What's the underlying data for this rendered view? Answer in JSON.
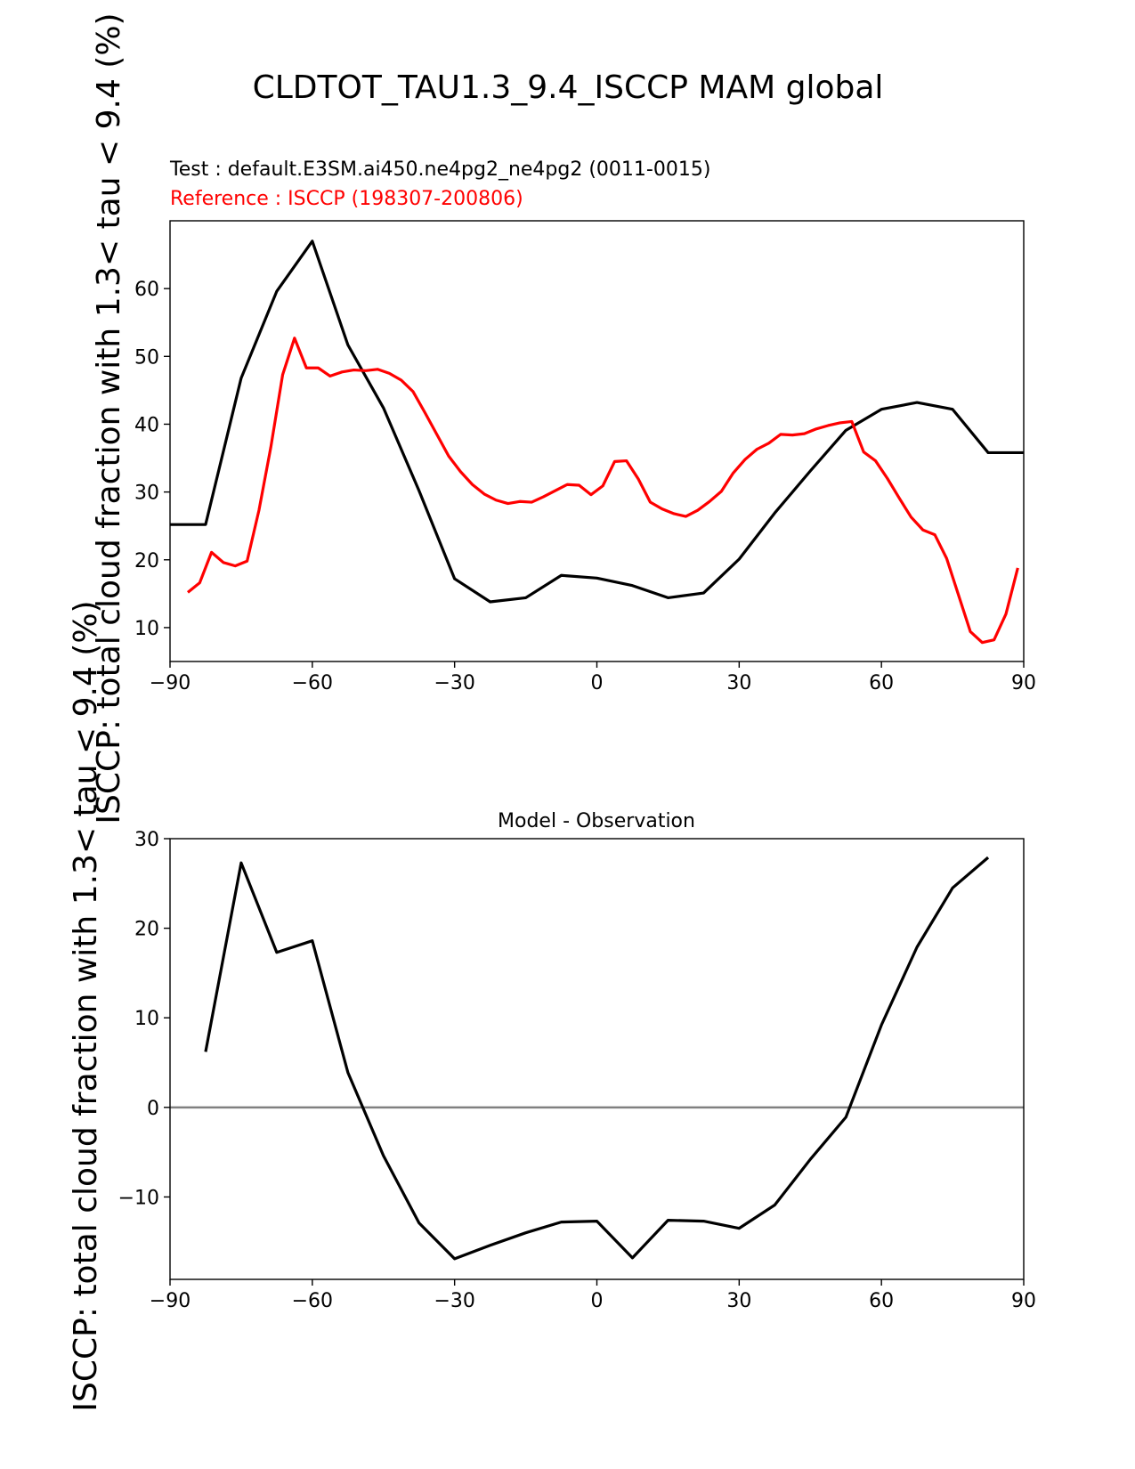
{
  "figure": {
    "title": "CLDTOT_TAU1.3_9.4_ISCCP MAM global",
    "test_label": "Test : default.E3SM.ai450.ne4pg2_ne4pg2 (0011-0015)",
    "reference_label": "Reference : ISCCP (198307-200806)",
    "test_color": "#000000",
    "reference_color": "#ff0000",
    "zero_line_color": "#808080"
  },
  "chart_data": [
    {
      "type": "line",
      "title": "",
      "ylabel": "ISCCP: total cloud fraction with 1.3< tau < 9.4 (%)",
      "xlabel": "",
      "xlim": [
        -90,
        90
      ],
      "ylim": [
        5,
        70
      ],
      "xticks": [
        -90,
        -60,
        -30,
        0,
        30,
        60,
        90
      ],
      "xtick_labels": [
        "−90",
        "−60",
        "−30",
        "0",
        "30",
        "60",
        "90"
      ],
      "yticks": [
        10,
        20,
        30,
        40,
        50,
        60
      ],
      "ytick_labels": [
        "10",
        "20",
        "30",
        "40",
        "50",
        "60"
      ],
      "grid": false,
      "series": [
        {
          "name": "",
          "color": "#000000",
          "x": [
            -90,
            -82.5,
            -75,
            -67.5,
            -60,
            -52.5,
            -45,
            -37.5,
            -30,
            -22.5,
            -15,
            -7.5,
            0,
            7.5,
            15,
            22.5,
            30,
            37.5,
            45,
            52.5,
            60,
            67.5,
            75,
            82.5,
            90
          ],
          "y": [
            25.2,
            25.2,
            46.8,
            59.6,
            67.0,
            51.7,
            42.4,
            30.2,
            17.2,
            13.8,
            14.4,
            17.7,
            17.3,
            16.2,
            14.4,
            15.1,
            20.1,
            26.9,
            33.1,
            39.1,
            42.2,
            43.2,
            42.2,
            35.8,
            35.8
          ]
        },
        {
          "name": "",
          "color": "#ff0000",
          "x": [
            -86.25,
            -83.75,
            -81.25,
            -78.75,
            -76.25,
            -73.75,
            -71.25,
            -68.75,
            -66.25,
            -63.75,
            -61.25,
            -58.75,
            -56.25,
            -53.75,
            -51.25,
            -48.75,
            -46.25,
            -43.75,
            -41.25,
            -38.75,
            -36.25,
            -33.75,
            -31.25,
            -28.75,
            -26.25,
            -23.75,
            -21.25,
            -18.75,
            -16.25,
            -13.75,
            -11.25,
            -8.75,
            -6.25,
            -3.75,
            -1.25,
            1.25,
            3.75,
            6.25,
            8.75,
            11.25,
            13.75,
            16.25,
            18.75,
            21.25,
            23.75,
            26.25,
            28.75,
            31.25,
            33.75,
            36.25,
            38.75,
            41.25,
            43.75,
            46.25,
            48.75,
            51.25,
            53.75,
            56.25,
            58.75,
            61.25,
            63.75,
            66.25,
            68.75,
            71.25,
            73.75,
            76.25,
            78.75,
            81.25,
            83.75,
            86.25,
            88.75
          ],
          "y": [
            15.2,
            16.6,
            21.1,
            19.6,
            19.1,
            19.8,
            27.3,
            36.6,
            47.3,
            52.7,
            48.3,
            48.3,
            47.1,
            47.7,
            48.0,
            47.9,
            48.1,
            47.5,
            46.5,
            44.8,
            41.7,
            38.5,
            35.3,
            33.0,
            31.1,
            29.7,
            28.8,
            28.3,
            28.6,
            28.5,
            29.3,
            30.2,
            31.1,
            31.0,
            29.6,
            30.9,
            34.5,
            34.6,
            31.9,
            28.5,
            27.5,
            26.8,
            26.4,
            27.3,
            28.6,
            30.1,
            32.8,
            34.8,
            36.3,
            37.2,
            38.5,
            38.4,
            38.6,
            39.3,
            39.8,
            40.2,
            40.4,
            35.9,
            34.6,
            32.0,
            29.1,
            26.3,
            24.4,
            23.7,
            20.2,
            14.8,
            9.4,
            7.8,
            8.2,
            12.0,
            18.8
          ]
        }
      ]
    },
    {
      "type": "line",
      "title": "Model - Observation",
      "ylabel": "ISCCP: total cloud fraction with 1.3< tau < 9.4 (%)",
      "xlabel": "",
      "xlim": [
        -90,
        90
      ],
      "ylim": [
        -19.2,
        30
      ],
      "xticks": [
        -90,
        -60,
        -30,
        0,
        30,
        60,
        90
      ],
      "xtick_labels": [
        "−90",
        "−60",
        "−30",
        "0",
        "30",
        "60",
        "90"
      ],
      "yticks": [
        -10,
        0,
        10,
        20,
        30
      ],
      "ytick_labels": [
        "−10",
        "0",
        "10",
        "20",
        "30"
      ],
      "zero_line": 0,
      "grid": false,
      "series": [
        {
          "name": "",
          "color": "#000000",
          "x": [
            -82.5,
            -75,
            -67.5,
            -60,
            -52.5,
            -45,
            -37.5,
            -30,
            -22.5,
            -15,
            -7.5,
            0,
            7.5,
            15,
            22.5,
            30,
            37.5,
            45,
            52.5,
            60,
            67.5,
            75,
            82.5
          ],
          "y": [
            6.2,
            27.3,
            17.3,
            18.6,
            3.9,
            -5.4,
            -12.9,
            -16.9,
            -15.4,
            -14.0,
            -12.8,
            -12.7,
            -16.8,
            -12.6,
            -12.7,
            -13.5,
            -10.9,
            -5.8,
            -1.1,
            9.2,
            17.9,
            24.5,
            27.9
          ]
        }
      ]
    }
  ]
}
